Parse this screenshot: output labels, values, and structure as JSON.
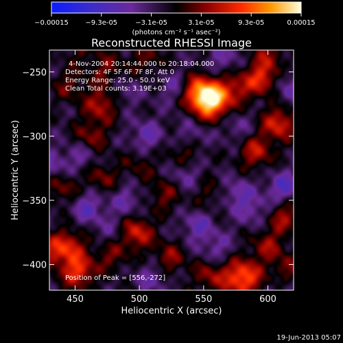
{
  "chart_data": {
    "type": "heatmap",
    "title": "Reconstructed RHESSI Image",
    "xlabel": "Heliocentric X (arcsec)",
    "ylabel": "Heliocentric Y (arcsec)",
    "xlim": [
      430,
      620
    ],
    "ylim": [
      -420,
      -233
    ],
    "x_ticks": [
      450,
      500,
      550,
      600
    ],
    "y_ticks": [
      -250,
      -300,
      -350,
      -400
    ],
    "colorbar": {
      "ticks": [
        "-0.00015",
        "-9.3e-05",
        "-3.1e-05",
        "3.1e-05",
        "9.3e-05",
        "0.00015"
      ],
      "unit": "(photons cm⁻² s⁻¹ asec⁻²)",
      "range": [
        -0.00015,
        0.00015
      ]
    },
    "annotations": {
      "time_range": "4-Nov-2004 20:14:44.000 to 20:18:04.000",
      "detectors": "Detectors: 4F 5F 6F 7F 8F, Att 0",
      "energy": "Energy Range: 25.0 - 50.0 keV",
      "clean": "Clean    Total counts: 3.19E+03",
      "peak": "Position of Peak = [556,-272]"
    },
    "peak": [
      556,
      -272
    ],
    "blobs": [
      {
        "x": 556,
        "y": -272,
        "v": 1.0
      },
      {
        "x": 545,
        "y": -265,
        "v": 0.6
      },
      {
        "x": 575,
        "y": -262,
        "v": 0.35
      },
      {
        "x": 595,
        "y": -255,
        "v": 0.55
      },
      {
        "x": 608,
        "y": -290,
        "v": 0.55
      },
      {
        "x": 590,
        "y": -312,
        "v": 0.45
      },
      {
        "x": 470,
        "y": -275,
        "v": 0.45
      },
      {
        "x": 462,
        "y": -300,
        "v": 0.35
      },
      {
        "x": 505,
        "y": -240,
        "v": 0.25
      },
      {
        "x": 475,
        "y": -248,
        "v": 0.3
      },
      {
        "x": 445,
        "y": -260,
        "v": 0.25
      },
      {
        "x": 535,
        "y": -312,
        "v": 0.3
      },
      {
        "x": 500,
        "y": -322,
        "v": 0.2
      },
      {
        "x": 470,
        "y": -332,
        "v": 0.3
      },
      {
        "x": 440,
        "y": -340,
        "v": 0.3
      },
      {
        "x": 520,
        "y": -345,
        "v": 0.3
      },
      {
        "x": 555,
        "y": -345,
        "v": 0.2
      },
      {
        "x": 612,
        "y": -362,
        "v": 0.4
      },
      {
        "x": 600,
        "y": -385,
        "v": 0.35
      },
      {
        "x": 497,
        "y": -375,
        "v": 0.55
      },
      {
        "x": 478,
        "y": -392,
        "v": 0.3
      },
      {
        "x": 523,
        "y": -395,
        "v": 0.35
      },
      {
        "x": 445,
        "y": -385,
        "v": 0.45
      },
      {
        "x": 452,
        "y": -405,
        "v": 0.6
      },
      {
        "x": 432,
        "y": -390,
        "v": 0.35
      },
      {
        "x": 580,
        "y": -410,
        "v": 0.75
      },
      {
        "x": 555,
        "y": -408,
        "v": 0.35
      },
      {
        "x": 615,
        "y": -405,
        "v": 0.3
      },
      {
        "x": 455,
        "y": -230,
        "v": 0.2
      },
      {
        "x": 600,
        "y": -236,
        "v": 0.3
      },
      {
        "x": 540,
        "y": -300,
        "v": -0.25
      },
      {
        "x": 505,
        "y": -300,
        "v": -0.3
      },
      {
        "x": 528,
        "y": -262,
        "v": -0.25
      },
      {
        "x": 565,
        "y": -240,
        "v": -0.25
      },
      {
        "x": 488,
        "y": -265,
        "v": -0.2
      },
      {
        "x": 455,
        "y": -315,
        "v": -0.25
      },
      {
        "x": 460,
        "y": -355,
        "v": -0.35
      },
      {
        "x": 490,
        "y": -350,
        "v": -0.25
      },
      {
        "x": 535,
        "y": -330,
        "v": -0.25
      },
      {
        "x": 545,
        "y": -370,
        "v": -0.3
      },
      {
        "x": 575,
        "y": -345,
        "v": -0.3
      },
      {
        "x": 590,
        "y": -358,
        "v": -0.25
      },
      {
        "x": 612,
        "y": -340,
        "v": -0.4
      },
      {
        "x": 510,
        "y": -410,
        "v": -0.25
      },
      {
        "x": 615,
        "y": -262,
        "v": -0.25
      },
      {
        "x": 575,
        "y": -292,
        "v": -0.2
      },
      {
        "x": 432,
        "y": -322,
        "v": -0.25
      },
      {
        "x": 480,
        "y": -375,
        "v": -0.2
      },
      {
        "x": 560,
        "y": -388,
        "v": -0.25
      },
      {
        "x": 615,
        "y": -420,
        "v": -0.2
      }
    ]
  },
  "footer": {
    "timestamp": "19-Jun-2013 05:07"
  }
}
